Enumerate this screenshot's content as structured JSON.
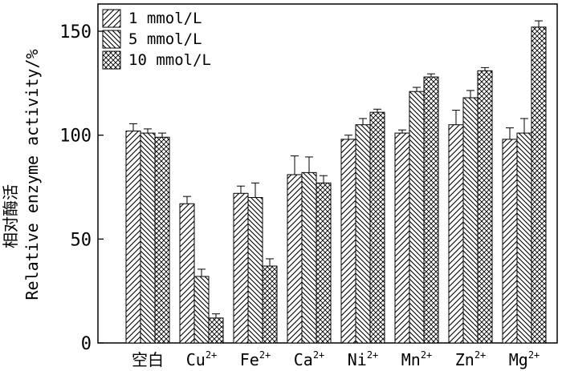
{
  "chart_data": {
    "type": "bar",
    "title": "",
    "xlabel": "",
    "ylabel": "相对酶活",
    "ylabel_en": "Relative enzyme activity/%",
    "ylim": [
      0,
      165
    ],
    "yticks": [
      0,
      50,
      100,
      150
    ],
    "legend_position": "top-left",
    "categories": [
      {
        "base": "空白",
        "sup": ""
      },
      {
        "base": "Cu",
        "sup": "2+"
      },
      {
        "base": "Fe",
        "sup": "2+"
      },
      {
        "base": "Ca",
        "sup": "2+"
      },
      {
        "base": "Ni",
        "sup": "2+"
      },
      {
        "base": "Mn",
        "sup": "2+"
      },
      {
        "base": "Zn",
        "sup": "2+"
      },
      {
        "base": "Mg",
        "sup": "2+"
      }
    ],
    "series": [
      {
        "name": "1 mmol/L",
        "pattern": "diag-right",
        "values": [
          102,
          67,
          72,
          81,
          98,
          101,
          105,
          98
        ],
        "errors": [
          3.5,
          3.5,
          3.5,
          9,
          2,
          1.5,
          7,
          5.5
        ]
      },
      {
        "name": "5 mmol/L",
        "pattern": "diag-left",
        "values": [
          101,
          32,
          70,
          82,
          105,
          121,
          118,
          101
        ],
        "errors": [
          2,
          3.5,
          7,
          7.5,
          3,
          2,
          3.5,
          7
        ]
      },
      {
        "name": "10 mmol/L",
        "pattern": "crosshatch",
        "values": [
          99,
          12,
          37,
          77,
          111,
          128,
          131,
          152
        ],
        "errors": [
          2,
          2,
          3.5,
          3.5,
          1.5,
          1.5,
          1.5,
          3
        ]
      }
    ]
  }
}
